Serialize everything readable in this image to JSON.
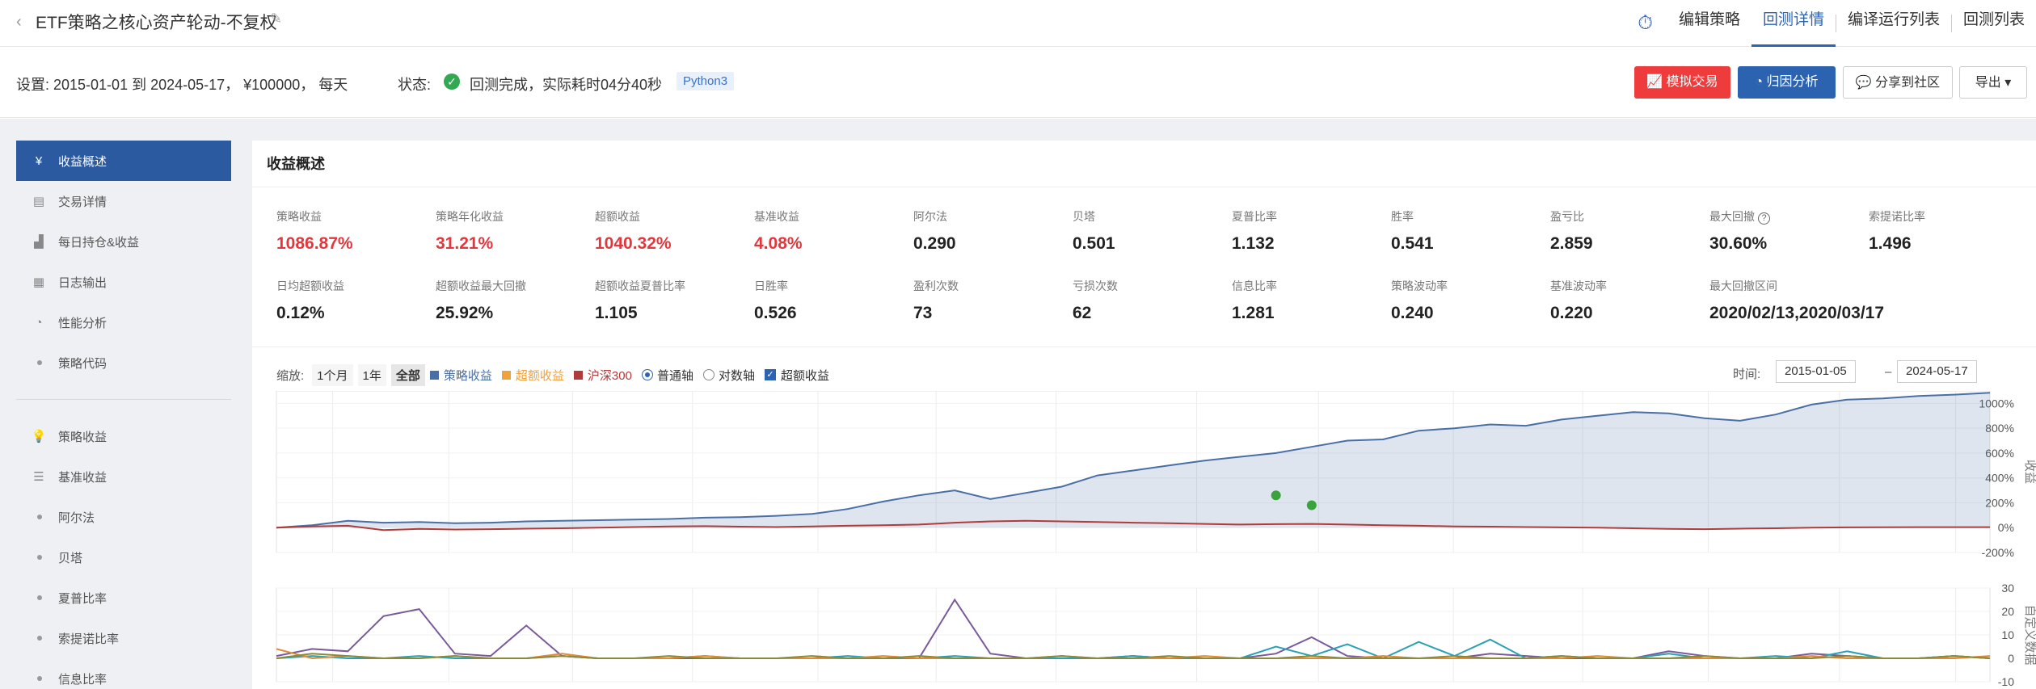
{
  "header": {
    "back_icon": "chevron-left-icon",
    "title": "ETF策略之核心资产轮动-不复权",
    "edit_icon": "pencil-icon",
    "nav": [
      "编辑策略",
      "回测详情",
      "编译运行列表",
      "回测列表"
    ],
    "active_nav": "回测详情"
  },
  "settings": {
    "text": "设置:   2015-01-01 到 2024-05-17，  ¥100000，  每天",
    "status_label": "状态:",
    "status": "回测完成，实际耗时04分40秒",
    "lang": "Python3",
    "buttons": {
      "sim": "模拟交易",
      "attr": "归因分析",
      "share": "分享到社区",
      "export": "导出 ▾"
    }
  },
  "sidebar": {
    "items": [
      {
        "label": "收益概述",
        "icon": "yen-icon",
        "active": true
      },
      {
        "label": "交易详情",
        "icon": "document-icon"
      },
      {
        "label": "每日持仓&收益",
        "icon": "bar-chart-icon"
      },
      {
        "label": "日志输出",
        "icon": "log-icon"
      },
      {
        "label": "性能分析",
        "icon": "pie-icon"
      },
      {
        "label": "策略代码",
        "icon": "dot"
      }
    ],
    "items2": [
      {
        "label": "策略收益",
        "icon": "bulb-icon"
      },
      {
        "label": "基准收益",
        "icon": "database-icon"
      },
      {
        "label": "阿尔法",
        "icon": "dot"
      },
      {
        "label": "贝塔",
        "icon": "dot"
      },
      {
        "label": "夏普比率",
        "icon": "dot"
      },
      {
        "label": "索提诺比率",
        "icon": "dot"
      },
      {
        "label": "信息比率",
        "icon": "dot"
      }
    ]
  },
  "panel": {
    "title": "收益概述",
    "metrics_row1": [
      {
        "label": "策略收益",
        "value": "1086.87%",
        "red": true
      },
      {
        "label": "策略年化收益",
        "value": "31.21%",
        "red": true
      },
      {
        "label": "超额收益",
        "value": "1040.32%",
        "red": true
      },
      {
        "label": "基准收益",
        "value": "4.08%",
        "red": true
      },
      {
        "label": "阿尔法",
        "value": "0.290"
      },
      {
        "label": "贝塔",
        "value": "0.501"
      },
      {
        "label": "夏普比率",
        "value": "1.132"
      },
      {
        "label": "胜率",
        "value": "0.541"
      },
      {
        "label": "盈亏比",
        "value": "2.859"
      },
      {
        "label": "最大回撤",
        "value": "30.60%",
        "help": true
      },
      {
        "label": "索提诺比率",
        "value": "1.496"
      }
    ],
    "metrics_row2": [
      {
        "label": "日均超额收益",
        "value": "0.12%"
      },
      {
        "label": "超额收益最大回撤",
        "value": "25.92%"
      },
      {
        "label": "超额收益夏普比率",
        "value": "1.105"
      },
      {
        "label": "日胜率",
        "value": "0.526"
      },
      {
        "label": "盈利次数",
        "value": "73"
      },
      {
        "label": "亏损次数",
        "value": "62"
      },
      {
        "label": "信息比率",
        "value": "1.281"
      },
      {
        "label": "策略波动率",
        "value": "0.240"
      },
      {
        "label": "基准波动率",
        "value": "0.220"
      },
      {
        "label": "最大回撤区间",
        "value": "2020/02/13,2020/03/17"
      }
    ]
  },
  "toolbar": {
    "zoom_label": "缩放:",
    "zoom": [
      "1个月",
      "1年",
      "全部"
    ],
    "legend": [
      "策略收益",
      "超额收益",
      "沪深300"
    ],
    "axis_normal": "普通轴",
    "axis_log": "对数轴",
    "excess_check": "超额收益",
    "time_label": "时间:",
    "start": "2015-01-05",
    "end": "2024-05-17",
    "dash": "–"
  },
  "colors": {
    "strategy": "#4a6fa5",
    "excess": "#f0a13c",
    "benchmark": "#b23a3a"
  },
  "chart_data": [
    {
      "type": "area",
      "ylabel": "收益",
      "y_ticks": [
        "1000%",
        "800%",
        "600%",
        "400%",
        "200%",
        "0%",
        "-200%"
      ],
      "ylim": [
        -200,
        1100
      ],
      "x_range": [
        "2015-01-05",
        "2024-05-17"
      ],
      "series": [
        {
          "name": "策略收益",
          "color": "#4a6fa5",
          "values": [
            0,
            20,
            55,
            40,
            45,
            35,
            40,
            50,
            55,
            60,
            65,
            70,
            80,
            85,
            95,
            110,
            150,
            210,
            260,
            300,
            230,
            280,
            330,
            420,
            460,
            500,
            540,
            570,
            600,
            650,
            700,
            710,
            780,
            800,
            830,
            820,
            870,
            900,
            930,
            920,
            880,
            860,
            910,
            990,
            1030,
            1040,
            1060,
            1070,
            1086
          ]
        },
        {
          "name": "沪深300",
          "color": "#b23a3a",
          "values": [
            0,
            10,
            15,
            -20,
            -10,
            -15,
            -12,
            -8,
            -5,
            0,
            5,
            10,
            12,
            8,
            5,
            10,
            15,
            20,
            25,
            40,
            50,
            55,
            50,
            45,
            40,
            35,
            30,
            25,
            28,
            30,
            25,
            20,
            15,
            10,
            8,
            5,
            2,
            0,
            -5,
            -10,
            -12,
            -8,
            -5,
            0,
            2,
            3,
            4,
            4,
            4
          ]
        }
      ],
      "markers": [
        {
          "x_index": 28,
          "value": 260,
          "color": "#3ba33b"
        },
        {
          "x_index": 29,
          "value": 180,
          "color": "#3ba33b"
        }
      ]
    },
    {
      "type": "line",
      "ylabel": "自定义数据",
      "y_ticks": [
        "30",
        "20",
        "10",
        "0",
        "-10"
      ],
      "ylim": [
        -10,
        30
      ],
      "series": [
        {
          "name": "purple",
          "color": "#7a5a9a",
          "values": [
            1,
            4,
            3,
            18,
            21,
            2,
            1,
            14,
            1,
            0,
            0,
            0,
            0,
            0,
            0,
            0,
            0,
            0,
            0,
            25,
            2,
            0,
            0,
            0,
            1,
            0,
            0,
            0,
            2,
            9,
            1,
            0,
            0,
            0,
            2,
            1,
            0,
            0,
            0,
            3,
            1,
            0,
            0,
            2,
            1,
            0,
            0,
            1,
            0
          ]
        },
        {
          "name": "teal",
          "color": "#2aa0b5",
          "values": [
            0,
            1,
            0,
            0,
            1,
            0,
            0,
            0,
            1,
            0,
            0,
            0,
            1,
            0,
            0,
            0,
            1,
            0,
            0,
            1,
            0,
            0,
            0,
            0,
            1,
            0,
            0,
            0,
            5,
            1,
            6,
            0,
            7,
            1,
            8,
            0,
            1,
            0,
            0,
            2,
            0,
            0,
            1,
            0,
            3,
            0,
            0,
            1,
            0
          ]
        },
        {
          "name": "orange",
          "color": "#e08a3c",
          "values": [
            4,
            0,
            1,
            0,
            0,
            1,
            0,
            0,
            2,
            0,
            0,
            0,
            1,
            0,
            0,
            0,
            0,
            1,
            0,
            0,
            0,
            0,
            1,
            0,
            0,
            0,
            1,
            0,
            0,
            0,
            0,
            1,
            0,
            0,
            0,
            0,
            0,
            1,
            0,
            0,
            0,
            0,
            0,
            1,
            0,
            0,
            0,
            0,
            1
          ]
        },
        {
          "name": "olive",
          "color": "#8a8a3a",
          "values": [
            0,
            2,
            1,
            0,
            0,
            1,
            0,
            0,
            1,
            0,
            0,
            1,
            0,
            0,
            0,
            1,
            0,
            0,
            1,
            0,
            0,
            0,
            1,
            0,
            0,
            1,
            0,
            0,
            0,
            1,
            0,
            0,
            0,
            1,
            0,
            0,
            1,
            0,
            0,
            0,
            1,
            0,
            0,
            0,
            1,
            0,
            0,
            1,
            0
          ]
        }
      ]
    }
  ]
}
